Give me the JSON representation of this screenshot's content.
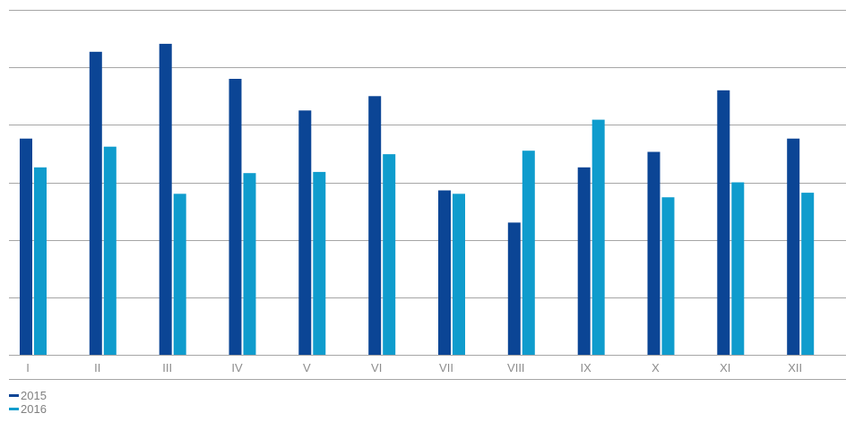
{
  "chart_data": {
    "type": "bar",
    "categories": [
      "I",
      "II",
      "III",
      "IV",
      "V",
      "VI",
      "VII",
      "VIII",
      "IX",
      "X",
      "XI",
      "XII"
    ],
    "series": [
      {
        "name": "2015",
        "color": "#0b4595",
        "values": [
          3.76,
          5.27,
          5.41,
          4.8,
          4.25,
          4.5,
          2.86,
          2.3,
          3.26,
          3.53,
          4.6,
          3.76
        ]
      },
      {
        "name": "2016",
        "color": "#0f9ccd",
        "values": [
          3.26,
          3.62,
          2.8,
          3.16,
          3.18,
          3.49,
          2.8,
          3.55,
          4.09,
          2.74,
          3.0,
          2.82
        ]
      }
    ],
    "ylim": [
      0,
      6
    ],
    "grid": true,
    "legend": "bottom-left",
    "title": "",
    "xlabel": "",
    "ylabel": ""
  }
}
